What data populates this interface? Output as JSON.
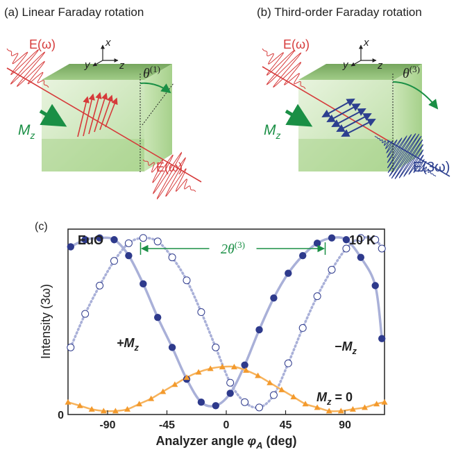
{
  "panel_a": {
    "title": "(a) Linear Faraday rotation",
    "field_in": "E(ω)",
    "field_out": "E(ω)",
    "magnetization": "M",
    "magnetization_sub": "z",
    "angle": "θ",
    "angle_sup": "(1)",
    "axis_x": "x",
    "axis_y": "y",
    "axis_z": "z"
  },
  "panel_b": {
    "title": "(b) Third-order Faraday rotation",
    "field_in": "E(ω)",
    "field_out": "E(3ω)",
    "magnetization": "M",
    "magnetization_sub": "z",
    "angle": "θ",
    "angle_sup": "(3)",
    "axis_x": "x",
    "axis_y": "y",
    "axis_z": "z"
  },
  "panel_c": {
    "tag": "(c)",
    "material": "EuO",
    "temperature": "10 K",
    "rotation_label": "2θ",
    "rotation_sup": "(3)",
    "label_plus": "+M",
    "label_minus": "−M",
    "label_zero": "M",
    "label_zero_value": " = 0",
    "label_sub": "z"
  },
  "colors": {
    "red_field": "#d63a3a",
    "navy_field": "#2c3f8f",
    "green_arrow": "#1a8f45",
    "crystal": "#b7dca0",
    "fit_line": "#a9b0d8",
    "dot_fill": "#2e3a8c",
    "orange": "#f39a2d"
  },
  "chart_data": {
    "type": "scatter",
    "xlabel": "Analyzer angle φA (deg)",
    "ylabel": "Intensity (3ω)",
    "x_ticks": [
      "-90",
      "-45",
      "0",
      "45",
      "90"
    ],
    "y_ticks": [
      "0"
    ],
    "xlim": [
      -120,
      120
    ],
    "ylim": [
      0,
      1.05
    ],
    "series": [
      {
        "name": "+Mz",
        "marker": "filled-circle",
        "x": [
          -118,
          -107,
          -96,
          -85,
          -74,
          -63,
          -52,
          -41,
          -30,
          -19,
          -8,
          3,
          14,
          25,
          36,
          47,
          58,
          69,
          80,
          91,
          102,
          113,
          118
        ],
        "y": [
          0.95,
          0.99,
          1.0,
          0.99,
          0.9,
          0.74,
          0.55,
          0.38,
          0.2,
          0.07,
          0.05,
          0.12,
          0.28,
          0.48,
          0.66,
          0.8,
          0.9,
          0.97,
          1.0,
          0.99,
          0.89,
          0.73,
          0.43
        ]
      },
      {
        "name": "−Mz",
        "marker": "open-circle",
        "x": [
          -118,
          -107,
          -96,
          -85,
          -74,
          -63,
          -52,
          -41,
          -30,
          -19,
          -8,
          3,
          14,
          25,
          36,
          47,
          58,
          69,
          80,
          91,
          102,
          113,
          118
        ],
        "y": [
          0.38,
          0.57,
          0.73,
          0.87,
          0.97,
          1.0,
          0.98,
          0.89,
          0.76,
          0.58,
          0.38,
          0.18,
          0.07,
          0.04,
          0.11,
          0.29,
          0.49,
          0.67,
          0.82,
          0.94,
          1.0,
          0.99,
          0.94
        ]
      },
      {
        "name": "Mz = 0",
        "marker": "filled-triangle",
        "x": [
          -120,
          -111,
          -102,
          -93,
          -84,
          -75,
          -66,
          -57,
          -48,
          -39,
          -30,
          -21,
          -12,
          -3,
          6,
          15,
          24,
          33,
          42,
          51,
          60,
          69,
          78,
          87,
          96,
          105,
          114,
          120
        ],
        "y": [
          0.07,
          0.05,
          0.03,
          0.02,
          0.02,
          0.03,
          0.06,
          0.09,
          0.13,
          0.17,
          0.21,
          0.24,
          0.26,
          0.27,
          0.27,
          0.25,
          0.22,
          0.18,
          0.14,
          0.1,
          0.06,
          0.04,
          0.02,
          0.02,
          0.03,
          0.04,
          0.06,
          0.07
        ]
      }
    ],
    "fit_curves": [
      {
        "series": "+Mz",
        "style": "solid"
      },
      {
        "series": "−Mz",
        "style": "dotted"
      },
      {
        "series": "Mz = 0",
        "style": "solid"
      }
    ],
    "annotation": {
      "text": "2θ(3)",
      "from_x": -65,
      "to_x": 75
    }
  }
}
